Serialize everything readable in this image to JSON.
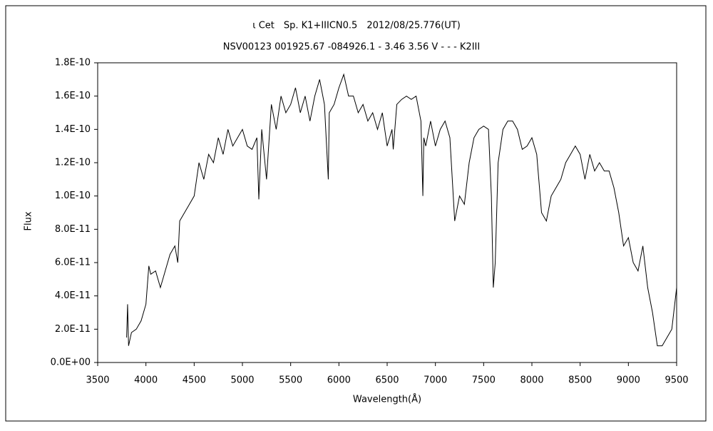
{
  "chart_data": {
    "type": "line",
    "title": "ι Cet　Sp. K1+IIICN0.5　2012/08/25.776(UT)",
    "subtitle": "NSV00123 001925.67 -084926.1 - 3.46 3.56 V - - - K2III",
    "xlabel": "Wavelength(Å)",
    "ylabel": "Flux",
    "x": [
      3800,
      3810,
      3820,
      3850,
      3900,
      3950,
      4000,
      4030,
      4050,
      4100,
      4150,
      4200,
      4250,
      4300,
      4330,
      4350,
      4400,
      4450,
      4500,
      4550,
      4600,
      4650,
      4700,
      4750,
      4800,
      4850,
      4900,
      4950,
      5000,
      5050,
      5100,
      5150,
      5170,
      5200,
      5250,
      5300,
      5350,
      5400,
      5450,
      5500,
      5550,
      5600,
      5650,
      5700,
      5750,
      5800,
      5850,
      5890,
      5900,
      5950,
      6000,
      6050,
      6100,
      6150,
      6200,
      6250,
      6300,
      6350,
      6400,
      6450,
      6500,
      6550,
      6563,
      6600,
      6650,
      6700,
      6750,
      6800,
      6850,
      6870,
      6880,
      6900,
      6950,
      7000,
      7050,
      7100,
      7150,
      7200,
      7250,
      7300,
      7350,
      7400,
      7450,
      7500,
      7550,
      7580,
      7600,
      7620,
      7650,
      7700,
      7750,
      7800,
      7850,
      7900,
      7950,
      8000,
      8050,
      8100,
      8150,
      8200,
      8250,
      8300,
      8350,
      8400,
      8450,
      8500,
      8550,
      8600,
      8650,
      8700,
      8750,
      8800,
      8850,
      8900,
      8950,
      9000,
      9050,
      9100,
      9150,
      9200,
      9250,
      9300,
      9350,
      9400,
      9450,
      9500
    ],
    "series": [
      {
        "name": "Flux",
        "color": "#000000",
        "values": [
          1.5e-11,
          3.5e-11,
          1e-11,
          1.8e-11,
          2e-11,
          2.5e-11,
          3.5e-11,
          5.8e-11,
          5.3e-11,
          5.5e-11,
          4.5e-11,
          5.5e-11,
          6.5e-11,
          7e-11,
          6e-11,
          8.5e-11,
          9e-11,
          9.5e-11,
          1e-10,
          1.2e-10,
          1.1e-10,
          1.25e-10,
          1.2e-10,
          1.35e-10,
          1.25e-10,
          1.4e-10,
          1.3e-10,
          1.35e-10,
          1.4e-10,
          1.3e-10,
          1.28e-10,
          1.35e-10,
          9.8e-11,
          1.4e-10,
          1.1e-10,
          1.55e-10,
          1.4e-10,
          1.6e-10,
          1.5e-10,
          1.55e-10,
          1.65e-10,
          1.5e-10,
          1.6e-10,
          1.45e-10,
          1.6e-10,
          1.7e-10,
          1.55e-10,
          1.1e-10,
          1.5e-10,
          1.55e-10,
          1.65e-10,
          1.73e-10,
          1.6e-10,
          1.6e-10,
          1.5e-10,
          1.55e-10,
          1.45e-10,
          1.5e-10,
          1.4e-10,
          1.5e-10,
          1.3e-10,
          1.4e-10,
          1.28e-10,
          1.55e-10,
          1.58e-10,
          1.6e-10,
          1.58e-10,
          1.6e-10,
          1.45e-10,
          1e-10,
          1.35e-10,
          1.3e-10,
          1.45e-10,
          1.3e-10,
          1.4e-10,
          1.45e-10,
          1.35e-10,
          8.5e-11,
          1e-10,
          9.5e-11,
          1.2e-10,
          1.35e-10,
          1.4e-10,
          1.42e-10,
          1.4e-10,
          1e-10,
          4.5e-11,
          6e-11,
          1.2e-10,
          1.4e-10,
          1.45e-10,
          1.45e-10,
          1.4e-10,
          1.28e-10,
          1.3e-10,
          1.35e-10,
          1.25e-10,
          9e-11,
          8.5e-11,
          1e-10,
          1.05e-10,
          1.1e-10,
          1.2e-10,
          1.25e-10,
          1.3e-10,
          1.25e-10,
          1.1e-10,
          1.25e-10,
          1.15e-10,
          1.2e-10,
          1.15e-10,
          1.15e-10,
          1.05e-10,
          9e-11,
          7e-11,
          7.5e-11,
          6e-11,
          5.5e-11,
          7e-11,
          4.5e-11,
          3e-11,
          1e-11,
          1e-11,
          1.5e-11,
          2e-11,
          4.5e-11
        ]
      }
    ],
    "xlim": [
      3500,
      9500
    ],
    "xticks": [
      3500,
      4000,
      4500,
      5000,
      5500,
      6000,
      6500,
      7000,
      7500,
      8000,
      8500,
      9000,
      9500
    ],
    "ylim": [
      0,
      1.8e-10
    ],
    "yticks": [
      {
        "value": 0,
        "label": "0.0E+00"
      },
      {
        "value": 2e-11,
        "label": "2.0E-11"
      },
      {
        "value": 4e-11,
        "label": "4.0E-11"
      },
      {
        "value": 6e-11,
        "label": "6.0E-11"
      },
      {
        "value": 8e-11,
        "label": "8.0E-11"
      },
      {
        "value": 1e-10,
        "label": "1.0E-10"
      },
      {
        "value": 1.2e-10,
        "label": "1.2E-10"
      },
      {
        "value": 1.4e-10,
        "label": "1.4E-10"
      },
      {
        "value": 1.6e-10,
        "label": "1.6E-10"
      },
      {
        "value": 1.8e-10,
        "label": "1.8E-10"
      }
    ],
    "grid": false
  }
}
